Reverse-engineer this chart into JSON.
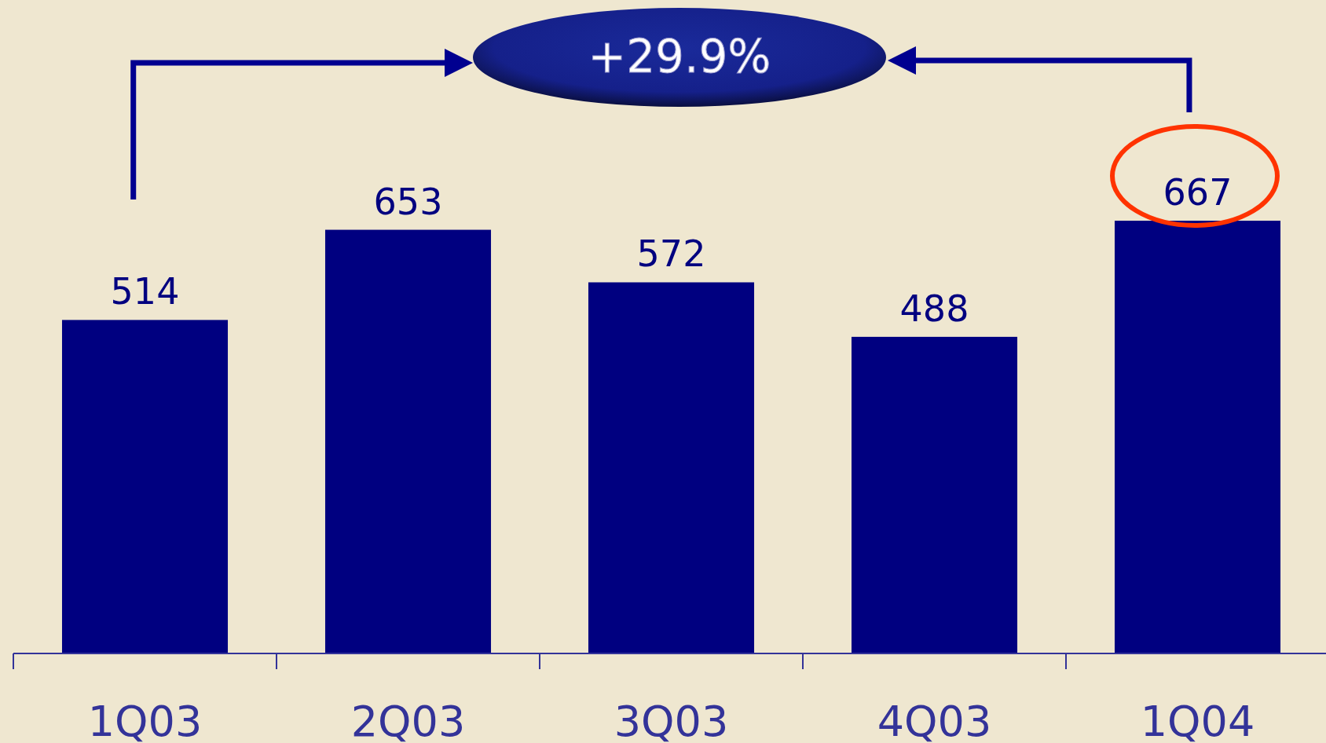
{
  "chart_data": {
    "type": "bar",
    "categories": [
      "1Q03",
      "2Q03",
      "3Q03",
      "4Q03",
      "1Q04"
    ],
    "values": [
      514,
      653,
      572,
      488,
      667
    ],
    "color": "#000080",
    "data_labels": true,
    "annotations": [
      "+29.9%"
    ]
  }
}
